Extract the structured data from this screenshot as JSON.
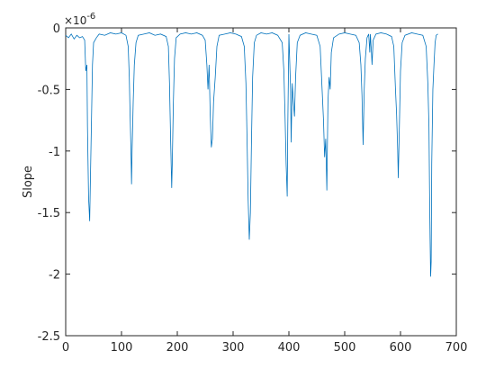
{
  "chart_data": {
    "type": "line",
    "ylabel": "Slope",
    "y_multiplier": "×10",
    "y_multiplier_exponent": "-6",
    "color": "#0072bd",
    "xlim": [
      0,
      700
    ],
    "xticks": [
      0,
      100,
      200,
      300,
      400,
      500,
      600,
      700
    ],
    "ylim": [
      -2.5,
      0
    ],
    "yticks": [
      -2.5,
      -2,
      -1.5,
      -1,
      -0.5,
      0
    ],
    "grid": false,
    "x": [
      0,
      5,
      10,
      15,
      20,
      25,
      30,
      34,
      36,
      38,
      39,
      41,
      43,
      44,
      46,
      48,
      50,
      55,
      60,
      70,
      80,
      90,
      100,
      108,
      112,
      114,
      115,
      117,
      118,
      119,
      121,
      123,
      126,
      130,
      140,
      150,
      160,
      170,
      180,
      184,
      186,
      188,
      190,
      191,
      193,
      195,
      198,
      205,
      215,
      225,
      235,
      245,
      250,
      253,
      255,
      257,
      259,
      261,
      263,
      265,
      268,
      271,
      275,
      285,
      295,
      305,
      315,
      320,
      323,
      325,
      327,
      329,
      331,
      333,
      335,
      338,
      342,
      350,
      360,
      370,
      380,
      388,
      391,
      393,
      395,
      397,
      398,
      400,
      402,
      403,
      404,
      406,
      408,
      410,
      412,
      415,
      420,
      430,
      440,
      450,
      456,
      459,
      462,
      464,
      466,
      468,
      470,
      472,
      474,
      476,
      480,
      490,
      500,
      510,
      520,
      526,
      529,
      531,
      533,
      535,
      537,
      540,
      543,
      545,
      546,
      548,
      549,
      551,
      556,
      565,
      575,
      584,
      588,
      591,
      593,
      595,
      596,
      598,
      600,
      603,
      608,
      620,
      630,
      640,
      646,
      649,
      651,
      652,
      653,
      654,
      655,
      656,
      658,
      660,
      662,
      664,
      667
    ],
    "values": [
      -0.06,
      -0.08,
      -0.05,
      -0.09,
      -0.06,
      -0.08,
      -0.07,
      -0.1,
      -0.35,
      -0.3,
      -0.8,
      -1.38,
      -1.57,
      -1.3,
      -0.8,
      -0.3,
      -0.12,
      -0.08,
      -0.05,
      -0.06,
      -0.04,
      -0.05,
      -0.04,
      -0.06,
      -0.15,
      -0.4,
      -0.62,
      -1.0,
      -1.27,
      -1.0,
      -0.6,
      -0.3,
      -0.12,
      -0.06,
      -0.05,
      -0.04,
      -0.06,
      -0.05,
      -0.07,
      -0.15,
      -0.45,
      -0.9,
      -1.3,
      -1.1,
      -0.6,
      -0.25,
      -0.08,
      -0.05,
      -0.04,
      -0.05,
      -0.04,
      -0.06,
      -0.1,
      -0.3,
      -0.5,
      -0.3,
      -0.7,
      -0.97,
      -0.9,
      -0.6,
      -0.4,
      -0.15,
      -0.06,
      -0.05,
      -0.04,
      -0.05,
      -0.07,
      -0.15,
      -0.45,
      -0.9,
      -1.4,
      -1.72,
      -1.5,
      -0.9,
      -0.4,
      -0.12,
      -0.06,
      -0.04,
      -0.05,
      -0.04,
      -0.06,
      -0.12,
      -0.35,
      -0.7,
      -1.1,
      -1.37,
      -0.8,
      -0.05,
      -0.35,
      -0.5,
      -0.93,
      -0.45,
      -0.6,
      -0.72,
      -0.4,
      -0.12,
      -0.06,
      -0.04,
      -0.05,
      -0.06,
      -0.15,
      -0.45,
      -0.75,
      -1.05,
      -0.9,
      -1.32,
      -0.6,
      -0.4,
      -0.5,
      -0.2,
      -0.08,
      -0.05,
      -0.04,
      -0.05,
      -0.06,
      -0.12,
      -0.3,
      -0.55,
      -0.95,
      -0.5,
      -0.25,
      -0.08,
      -0.05,
      -0.2,
      -0.05,
      -0.2,
      -0.3,
      -0.1,
      -0.05,
      -0.04,
      -0.05,
      -0.07,
      -0.15,
      -0.5,
      -0.7,
      -1.0,
      -1.22,
      -0.8,
      -0.35,
      -0.12,
      -0.06,
      -0.04,
      -0.05,
      -0.06,
      -0.15,
      -0.45,
      -0.8,
      -1.3,
      -1.7,
      -2.02,
      -1.9,
      -1.1,
      -0.5,
      -0.3,
      -0.12,
      -0.06,
      -0.05
    ]
  }
}
